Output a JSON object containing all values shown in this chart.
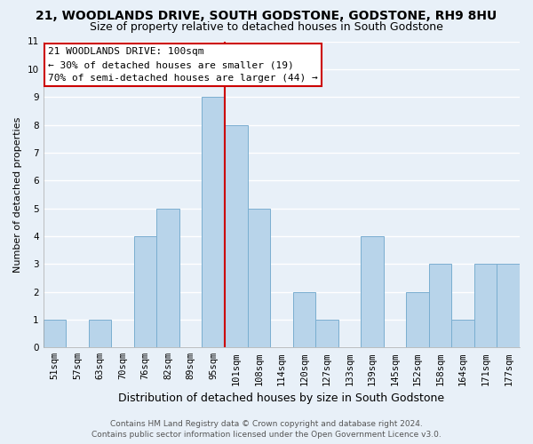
{
  "title": "21, WOODLANDS DRIVE, SOUTH GODSTONE, GODSTONE, RH9 8HU",
  "subtitle": "Size of property relative to detached houses in South Godstone",
  "xlabel": "Distribution of detached houses by size in South Godstone",
  "ylabel": "Number of detached properties",
  "categories": [
    "51sqm",
    "57sqm",
    "63sqm",
    "70sqm",
    "76sqm",
    "82sqm",
    "89sqm",
    "95sqm",
    "101sqm",
    "108sqm",
    "114sqm",
    "120sqm",
    "127sqm",
    "133sqm",
    "139sqm",
    "145sqm",
    "152sqm",
    "158sqm",
    "164sqm",
    "171sqm",
    "177sqm"
  ],
  "values": [
    1,
    0,
    1,
    0,
    4,
    5,
    0,
    9,
    8,
    5,
    0,
    2,
    1,
    0,
    4,
    0,
    2,
    3,
    1,
    3,
    3
  ],
  "bar_color": "#b8d4ea",
  "bar_edge_color": "#7aaed0",
  "highlight_index": 8,
  "highlight_line_color": "#cc0000",
  "ylim": [
    0,
    11
  ],
  "yticks": [
    0,
    1,
    2,
    3,
    4,
    5,
    6,
    7,
    8,
    9,
    10,
    11
  ],
  "annotation_title": "21 WOODLANDS DRIVE: 100sqm",
  "annotation_line1": "← 30% of detached houses are smaller (19)",
  "annotation_line2": "70% of semi-detached houses are larger (44) →",
  "annotation_box_edge": "#cc0000",
  "footer_line1": "Contains HM Land Registry data © Crown copyright and database right 2024.",
  "footer_line2": "Contains public sector information licensed under the Open Government Licence v3.0.",
  "background_color": "#e8f0f8",
  "grid_color": "#ffffff",
  "title_fontsize": 10,
  "subtitle_fontsize": 9,
  "xlabel_fontsize": 9,
  "ylabel_fontsize": 8,
  "tick_fontsize": 7.5,
  "footer_fontsize": 6.5,
  "ann_fontsize": 8
}
